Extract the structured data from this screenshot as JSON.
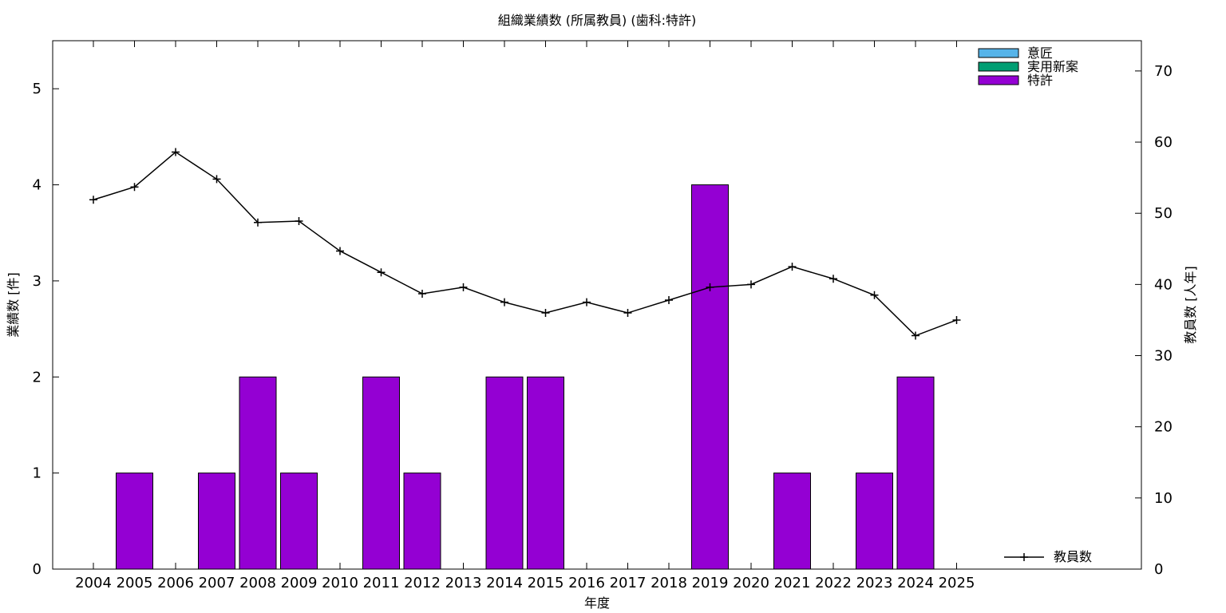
{
  "chart_data": {
    "type": "bar",
    "title": "組織業績数 (所属教員) (歯科:特許)",
    "xlabel": "年度",
    "ylabel_left": "業績数 [件]",
    "ylabel_right": "教員数 [人年]",
    "categories": [
      "2004",
      "2005",
      "2006",
      "2007",
      "2008",
      "2009",
      "2010",
      "2011",
      "2012",
      "2013",
      "2014",
      "2015",
      "2016",
      "2017",
      "2018",
      "2019",
      "2020",
      "2021",
      "2022",
      "2023",
      "2024",
      "2025"
    ],
    "ylim_left": [
      0,
      5.5
    ],
    "ylim_right": [
      0,
      74.25
    ],
    "yticks_left": [
      0,
      1,
      2,
      3,
      4,
      5
    ],
    "yticks_right": [
      0,
      10,
      20,
      30,
      40,
      50,
      60,
      70
    ],
    "grid": false,
    "legend_bars_position": "top-right",
    "legend_line_position": "bottom-right",
    "series": [
      {
        "name": "意匠",
        "type": "bar",
        "axis": "left",
        "color": "#56b4e9",
        "values": [
          0,
          0,
          0,
          0,
          0,
          0,
          0,
          0,
          0,
          0,
          0,
          0,
          0,
          0,
          0,
          0,
          0,
          0,
          0,
          0,
          0,
          0
        ]
      },
      {
        "name": "実用新案",
        "type": "bar",
        "axis": "left",
        "color": "#009e73",
        "values": [
          0,
          0,
          0,
          0,
          0,
          0,
          0,
          0,
          0,
          0,
          0,
          0,
          0,
          0,
          0,
          0,
          0,
          0,
          0,
          0,
          0,
          0
        ]
      },
      {
        "name": "特許",
        "type": "bar",
        "axis": "left",
        "color": "#9400d3",
        "values": [
          0,
          1,
          0,
          1,
          2,
          1,
          0,
          2,
          1,
          0,
          2,
          2,
          0,
          0,
          0,
          4,
          0,
          1,
          0,
          1,
          2,
          0
        ]
      },
      {
        "name": "教員数",
        "type": "line",
        "axis": "right",
        "color": "#000000",
        "values": [
          51.9,
          53.7,
          58.6,
          54.8,
          48.7,
          48.9,
          44.7,
          41.7,
          38.7,
          39.6,
          37.5,
          36.0,
          37.5,
          36.0,
          37.8,
          39.6,
          40.0,
          42.5,
          40.8,
          38.5,
          32.8,
          35.0
        ]
      }
    ]
  }
}
